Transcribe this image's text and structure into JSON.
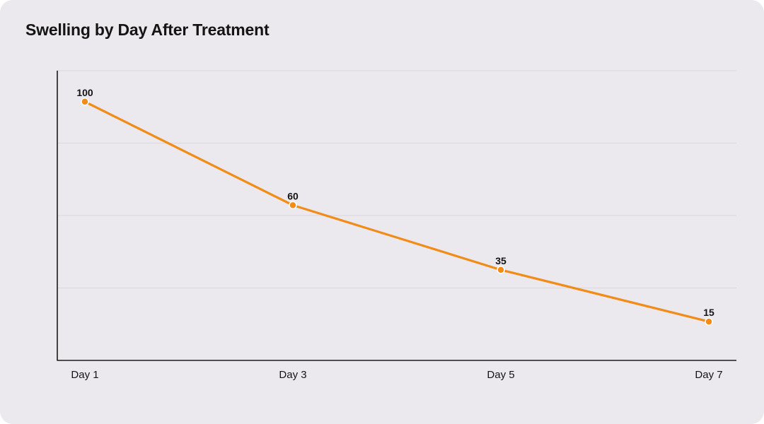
{
  "chart_data": {
    "type": "line",
    "title": "Swelling by Day After Treatment",
    "xlabel": "",
    "ylabel": "",
    "categories": [
      "Day 1",
      "Day 3",
      "Day 5",
      "Day 7"
    ],
    "series": [
      {
        "values": [
          100,
          60,
          35,
          15
        ]
      }
    ],
    "ylim": [
      0,
      112
    ],
    "grid": true,
    "legend": "none",
    "colors": {
      "line": "#f28c18",
      "grid": "#d9d6dc",
      "axis": "#1a1a1a",
      "background": "#ebe8ee"
    }
  }
}
